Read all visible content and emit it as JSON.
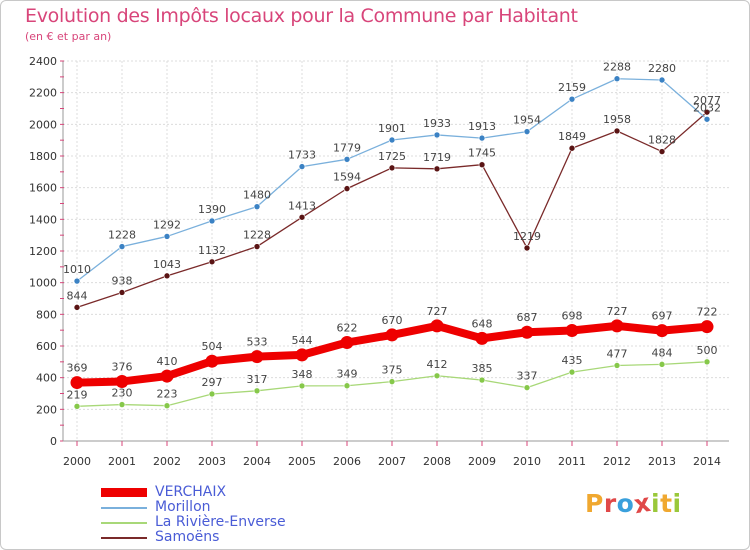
{
  "header": {
    "title": "Evolution des Impôts locaux pour la Commune par Habitant",
    "subtitle": "(en € et par an)"
  },
  "logo": {
    "text": "Proxiti",
    "letters": [
      {
        "char": "P",
        "color": "#f0a830"
      },
      {
        "char": "r",
        "color": "#e04848"
      },
      {
        "char": "o",
        "color": "#3aa0dc"
      },
      {
        "char": "x",
        "color": "#e04848"
      },
      {
        "char": "i",
        "color": "#9ac83a"
      },
      {
        "char": "t",
        "color": "#f0a830"
      },
      {
        "char": "i",
        "color": "#9ac83a"
      }
    ]
  },
  "chart_data": {
    "type": "line",
    "title": "Evolution des Impôts locaux pour la Commune par Habitant",
    "subtitle": "(en € et par an)",
    "x": [
      "2000",
      "2001",
      "2002",
      "2003",
      "2004",
      "2005",
      "2006",
      "2007",
      "2008",
      "2009",
      "2010",
      "2011",
      "2012",
      "2013",
      "2014"
    ],
    "ylim": [
      0,
      2400
    ],
    "yticks": [
      "0",
      "200",
      "400",
      "600",
      "800",
      "1000",
      "1200",
      "1400",
      "1600",
      "1800",
      "2000",
      "2200",
      "2400"
    ],
    "grid": true,
    "legend_position": "bottom-left",
    "series": [
      {
        "name": "VERCHAIX",
        "color": "#ee0000",
        "marker": "#ee0000",
        "values": [
          369,
          376,
          410,
          504,
          533,
          544,
          622,
          670,
          727,
          648,
          687,
          698,
          727,
          697,
          722
        ]
      },
      {
        "name": "Morillon",
        "color": "#7ab0dc",
        "marker": "#3b82c4",
        "values": [
          1010,
          1228,
          1292,
          1390,
          1480,
          1733,
          1779,
          1901,
          1933,
          1913,
          1954,
          2159,
          2288,
          2280,
          2032
        ]
      },
      {
        "name": "La Rivière-Enverse",
        "color": "#a8d878",
        "marker": "#86c84a",
        "values": [
          219,
          230,
          223,
          297,
          317,
          348,
          349,
          375,
          412,
          385,
          337,
          435,
          477,
          484,
          500
        ]
      },
      {
        "name": "Samoëns",
        "color": "#7a2a2a",
        "marker": "#5a1414",
        "values": [
          844,
          938,
          1043,
          1132,
          1228,
          1413,
          1594,
          1725,
          1719,
          1745,
          1219,
          1849,
          1958,
          1828,
          2077
        ]
      }
    ]
  }
}
